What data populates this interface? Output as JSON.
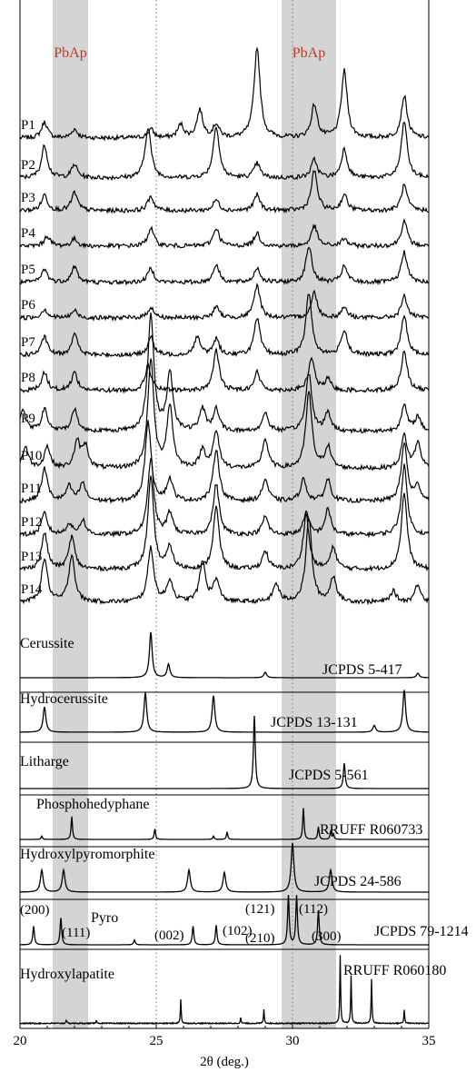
{
  "chart_data": {
    "type": "line",
    "subtype": "stacked x-ray diffraction patterns",
    "xlabel": "2θ (deg.)",
    "xlim": [
      20,
      35
    ],
    "x_ticks": [
      20,
      25,
      30,
      35
    ],
    "x_tick_labels": [
      "20",
      "25",
      "30",
      "35"
    ],
    "reference_line_x": [
      25,
      30
    ],
    "highlight_bands": [
      {
        "label": "PbAp",
        "x_range": [
          21.2,
          22.5
        ],
        "color": "#d4d4d4",
        "label_color": "#c0392b"
      },
      {
        "label": "PbAp",
        "x_range": [
          29.6,
          31.6
        ],
        "color": "#d4d4d4",
        "label_color": "#c0392b"
      }
    ],
    "sample_series": [
      {
        "name": "P1",
        "peaks": [
          [
            20.9,
            0.22
          ],
          [
            22.0,
            0.12
          ],
          [
            24.8,
            0.12
          ],
          [
            25.9,
            0.18
          ],
          [
            26.6,
            0.38
          ],
          [
            27.2,
            0.18
          ],
          [
            28.7,
            1.25
          ],
          [
            30.8,
            0.45
          ],
          [
            31.9,
            0.92
          ],
          [
            34.1,
            0.58
          ]
        ]
      },
      {
        "name": "P2",
        "peaks": [
          [
            20.9,
            0.45
          ],
          [
            22.0,
            0.18
          ],
          [
            24.7,
            0.7
          ],
          [
            27.2,
            0.72
          ],
          [
            28.7,
            0.2
          ],
          [
            30.8,
            0.25
          ],
          [
            31.9,
            0.4
          ],
          [
            34.1,
            0.78
          ]
        ]
      },
      {
        "name": "P3",
        "peaks": [
          [
            20.9,
            0.22
          ],
          [
            22.0,
            0.25
          ],
          [
            24.8,
            0.2
          ],
          [
            27.2,
            0.15
          ],
          [
            28.7,
            0.22
          ],
          [
            30.8,
            0.55
          ],
          [
            31.9,
            0.22
          ],
          [
            34.1,
            0.35
          ]
        ]
      },
      {
        "name": "P4",
        "peaks": [
          [
            21.0,
            0.14
          ],
          [
            22.0,
            0.1
          ],
          [
            24.8,
            0.25
          ],
          [
            27.2,
            0.25
          ],
          [
            28.7,
            0.18
          ],
          [
            30.8,
            0.28
          ],
          [
            31.9,
            0.1
          ],
          [
            34.1,
            0.35
          ]
        ]
      },
      {
        "name": "P5",
        "peaks": [
          [
            20.9,
            0.18
          ],
          [
            22.0,
            0.22
          ],
          [
            24.8,
            0.2
          ],
          [
            27.2,
            0.25
          ],
          [
            28.7,
            0.2
          ],
          [
            30.6,
            0.5
          ],
          [
            31.9,
            0.22
          ],
          [
            34.1,
            0.42
          ]
        ]
      },
      {
        "name": "P6",
        "peaks": [
          [
            20.9,
            0.12
          ],
          [
            22.0,
            0.1
          ],
          [
            24.8,
            0.15
          ],
          [
            27.2,
            0.15
          ],
          [
            28.7,
            0.45
          ],
          [
            30.8,
            0.35
          ],
          [
            31.9,
            0.15
          ],
          [
            34.1,
            0.3
          ]
        ]
      },
      {
        "name": "P7",
        "peaks": [
          [
            20.9,
            0.25
          ],
          [
            22.0,
            0.3
          ],
          [
            24.8,
            0.25
          ],
          [
            26.5,
            0.25
          ],
          [
            27.2,
            0.22
          ],
          [
            28.7,
            0.5
          ],
          [
            30.6,
            0.85
          ],
          [
            31.9,
            0.35
          ],
          [
            34.1,
            0.55
          ]
        ]
      },
      {
        "name": "P8",
        "peaks": [
          [
            20.9,
            0.25
          ],
          [
            22.0,
            0.25
          ],
          [
            24.7,
            0.35
          ],
          [
            27.2,
            0.55
          ],
          [
            28.7,
            0.25
          ],
          [
            30.7,
            0.45
          ],
          [
            31.3,
            0.15
          ],
          [
            34.1,
            0.55
          ]
        ]
      },
      {
        "name": "P9",
        "peaks": [
          [
            20.1,
            0.3
          ],
          [
            20.9,
            0.3
          ],
          [
            22.0,
            0.3
          ],
          [
            24.8,
            1.6
          ],
          [
            25.5,
            0.8
          ],
          [
            26.7,
            0.3
          ],
          [
            27.2,
            0.3
          ],
          [
            29.0,
            0.25
          ],
          [
            30.6,
            0.8
          ],
          [
            31.3,
            0.25
          ],
          [
            34.1,
            0.35
          ],
          [
            34.6,
            0.2
          ]
        ]
      },
      {
        "name": "P10",
        "peaks": [
          [
            20.2,
            0.3
          ],
          [
            21.0,
            0.3
          ],
          [
            22.1,
            0.35
          ],
          [
            22.4,
            0.3
          ],
          [
            24.8,
            1.5
          ],
          [
            25.5,
            0.85
          ],
          [
            26.7,
            0.25
          ],
          [
            27.2,
            0.5
          ],
          [
            29.0,
            0.4
          ],
          [
            30.6,
            1.05
          ],
          [
            31.3,
            0.3
          ],
          [
            34.1,
            0.45
          ],
          [
            34.6,
            0.35
          ]
        ]
      },
      {
        "name": "P11",
        "peaks": [
          [
            20.9,
            0.45
          ],
          [
            21.8,
            0.2
          ],
          [
            22.3,
            0.25
          ],
          [
            24.7,
            1.1
          ],
          [
            25.5,
            0.3
          ],
          [
            27.2,
            0.72
          ],
          [
            29.0,
            0.3
          ],
          [
            30.4,
            0.3
          ],
          [
            31.3,
            0.3
          ],
          [
            34.1,
            0.8
          ],
          [
            34.6,
            0.2
          ]
        ]
      },
      {
        "name": "P12",
        "peaks": [
          [
            20.9,
            0.3
          ],
          [
            21.8,
            0.15
          ],
          [
            22.3,
            0.2
          ],
          [
            24.8,
            1.05
          ],
          [
            25.5,
            0.3
          ],
          [
            27.2,
            0.7
          ],
          [
            29.0,
            0.25
          ],
          [
            30.5,
            0.3
          ],
          [
            31.3,
            0.35
          ],
          [
            34.1,
            0.95
          ]
        ]
      },
      {
        "name": "P13",
        "peaks": [
          [
            20.9,
            0.5
          ],
          [
            21.9,
            0.45
          ],
          [
            24.8,
            1.25
          ],
          [
            25.5,
            0.3
          ],
          [
            27.2,
            0.85
          ],
          [
            29.0,
            0.25
          ],
          [
            30.5,
            0.75
          ],
          [
            31.5,
            0.3
          ],
          [
            34.1,
            1.05
          ]
        ]
      },
      {
        "name": "P14",
        "peaks": [
          [
            20.9,
            0.6
          ],
          [
            21.9,
            0.65
          ],
          [
            24.8,
            0.75
          ],
          [
            25.5,
            0.3
          ],
          [
            26.7,
            0.55
          ],
          [
            27.2,
            0.3
          ],
          [
            29.4,
            0.25
          ],
          [
            30.6,
            1.15
          ],
          [
            31.5,
            0.35
          ],
          [
            33.7,
            0.15
          ],
          [
            34.6,
            0.25
          ]
        ]
      }
    ],
    "reference_series": [
      {
        "name": "Cerussite",
        "source": "JCPDS 5-417",
        "peaks": [
          [
            24.8,
            1.0
          ],
          [
            25.45,
            0.3
          ],
          [
            29.0,
            0.12
          ],
          [
            34.6,
            0.1
          ]
        ]
      },
      {
        "name": "Hydrocerussite",
        "source": "JCPDS 13-131",
        "peaks": [
          [
            20.9,
            0.45
          ],
          [
            24.6,
            0.7
          ],
          [
            27.1,
            0.65
          ],
          [
            33.0,
            0.12
          ],
          [
            34.1,
            0.75
          ]
        ]
      },
      {
        "name": "Litharge",
        "source": "JCPDS 5-561",
        "peaks": [
          [
            28.6,
            1.0
          ],
          [
            31.9,
            0.35
          ]
        ]
      },
      {
        "name": "Phosphohedyphane",
        "source": "RRUFF R060733",
        "peaks": [
          [
            20.8,
            0.08
          ],
          [
            21.9,
            0.55
          ],
          [
            24.95,
            0.25
          ],
          [
            27.1,
            0.08
          ],
          [
            27.6,
            0.18
          ],
          [
            30.4,
            0.75
          ],
          [
            30.95,
            0.3
          ],
          [
            31.4,
            0.18
          ],
          [
            31.5,
            0.12
          ]
        ]
      },
      {
        "name": "Hydroxylpyromorphite",
        "source": "JCPDS 24-586",
        "peaks": [
          [
            20.8,
            0.45
          ],
          [
            21.6,
            0.45
          ],
          [
            26.2,
            0.45
          ],
          [
            27.5,
            0.4
          ],
          [
            30.0,
            1.0
          ],
          [
            31.4,
            0.45
          ]
        ]
      },
      {
        "name": "Pyro",
        "source": "JCPDS 79-1214",
        "peaks": [
          [
            20.5,
            0.38
          ],
          [
            21.5,
            0.55
          ],
          [
            24.2,
            0.1
          ],
          [
            26.35,
            0.38
          ],
          [
            27.2,
            0.4
          ],
          [
            29.85,
            1.0
          ],
          [
            30.15,
            1.0
          ],
          [
            30.95,
            0.7
          ]
        ],
        "miller_indices": [
          {
            "x": 20.5,
            "label": "(200)"
          },
          {
            "x": 21.5,
            "label": "(111)"
          },
          {
            "x": 24.2,
            "label": "(002)"
          },
          {
            "x": 26.35,
            "label": "(102)"
          },
          {
            "x": 27.2,
            "label": "(210)"
          },
          {
            "x": 29.85,
            "label": "(121)"
          },
          {
            "x": 30.15,
            "label": "(112)"
          },
          {
            "x": 30.95,
            "label": "(300)"
          }
        ]
      },
      {
        "name": "Hydroxylapatite",
        "source": "RRUFF R060180",
        "peaks": [
          [
            21.7,
            0.05
          ],
          [
            22.8,
            0.05
          ],
          [
            25.9,
            0.35
          ],
          [
            28.1,
            0.08
          ],
          [
            28.95,
            0.2
          ],
          [
            31.75,
            1.0
          ],
          [
            32.15,
            0.7
          ],
          [
            32.9,
            0.65
          ],
          [
            34.1,
            0.2
          ]
        ]
      }
    ],
    "grid": false,
    "legend": "none"
  }
}
